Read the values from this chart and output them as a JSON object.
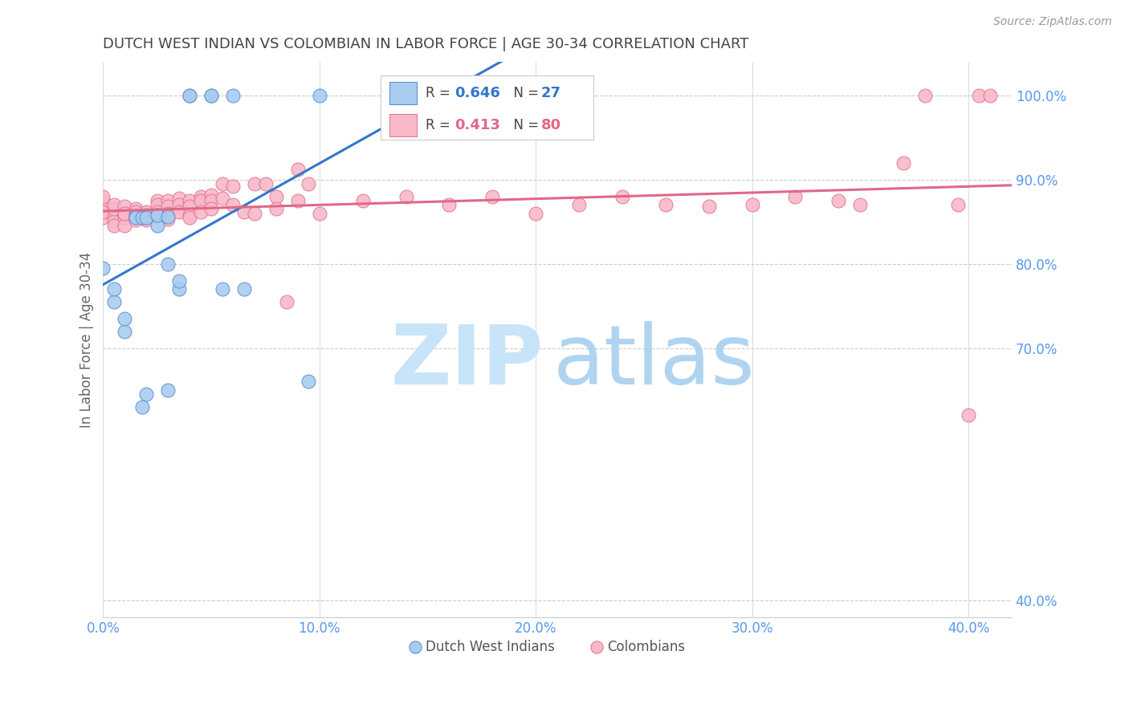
{
  "title": "DUTCH WEST INDIAN VS COLOMBIAN IN LABOR FORCE | AGE 30-34 CORRELATION CHART",
  "source": "Source: ZipAtlas.com",
  "ylabel": "In Labor Force | Age 30-34",
  "x_tick_vals": [
    0.0,
    0.1,
    0.2,
    0.3,
    0.4
  ],
  "x_tick_labels": [
    "0.0%",
    "10.0%",
    "20.0%",
    "30.0%",
    "40.0%"
  ],
  "y_tick_vals": [
    0.4,
    0.7,
    0.8,
    0.9,
    1.0
  ],
  "y_tick_labels": [
    "40.0%",
    "70.0%",
    "80.0%",
    "90.0%",
    "100.0%"
  ],
  "xlim": [
    0.0,
    0.42
  ],
  "ylim": [
    0.38,
    1.04
  ],
  "r_blue": 0.646,
  "n_blue": 27,
  "r_pink": 0.413,
  "n_pink": 80,
  "blue_fill": "#a8ccf0",
  "blue_edge": "#5588cc",
  "pink_fill": "#f8b8c8",
  "pink_edge": "#e07090",
  "blue_line": "#3377cc",
  "pink_line": "#e06888",
  "title_color": "#444444",
  "source_color": "#999999",
  "tick_color": "#5599ee",
  "ylabel_color": "#666666",
  "grid_color": "#cccccc",
  "watermark_zip_color": "#c8e4f8",
  "watermark_atlas_color": "#b0d4f0",
  "blue_scatter_x": [
    0.0,
    0.005,
    0.005,
    0.01,
    0.01,
    0.015,
    0.015,
    0.018,
    0.018,
    0.02,
    0.02,
    0.025,
    0.025,
    0.03,
    0.03,
    0.03,
    0.035,
    0.035,
    0.04,
    0.04,
    0.05,
    0.05,
    0.055,
    0.06,
    0.065,
    0.095,
    0.1
  ],
  "blue_scatter_y": [
    0.795,
    0.755,
    0.77,
    0.72,
    0.735,
    0.857,
    0.855,
    0.855,
    0.63,
    0.645,
    0.855,
    0.845,
    0.858,
    0.65,
    0.8,
    0.856,
    0.77,
    0.78,
    1.0,
    1.0,
    1.0,
    1.0,
    0.77,
    1.0,
    0.77,
    0.66,
    1.0
  ],
  "pink_scatter_x": [
    0.0,
    0.0,
    0.0,
    0.0,
    0.0,
    0.005,
    0.005,
    0.005,
    0.005,
    0.005,
    0.01,
    0.01,
    0.01,
    0.01,
    0.01,
    0.015,
    0.015,
    0.015,
    0.015,
    0.015,
    0.02,
    0.02,
    0.02,
    0.02,
    0.025,
    0.025,
    0.025,
    0.025,
    0.03,
    0.03,
    0.03,
    0.03,
    0.03,
    0.035,
    0.035,
    0.035,
    0.04,
    0.04,
    0.04,
    0.04,
    0.045,
    0.045,
    0.045,
    0.05,
    0.05,
    0.05,
    0.055,
    0.055,
    0.06,
    0.06,
    0.065,
    0.07,
    0.07,
    0.075,
    0.08,
    0.08,
    0.085,
    0.09,
    0.09,
    0.095,
    0.1,
    0.12,
    0.14,
    0.16,
    0.18,
    0.2,
    0.22,
    0.24,
    0.26,
    0.28,
    0.3,
    0.32,
    0.34,
    0.35,
    0.37,
    0.38,
    0.395,
    0.4,
    0.405,
    0.41
  ],
  "pink_scatter_y": [
    0.855,
    0.868,
    0.875,
    0.88,
    0.862,
    0.855,
    0.85,
    0.845,
    0.865,
    0.87,
    0.86,
    0.868,
    0.855,
    0.845,
    0.86,
    0.865,
    0.862,
    0.857,
    0.856,
    0.852,
    0.855,
    0.862,
    0.858,
    0.852,
    0.875,
    0.87,
    0.862,
    0.858,
    0.875,
    0.868,
    0.86,
    0.858,
    0.853,
    0.878,
    0.87,
    0.862,
    0.875,
    0.868,
    0.858,
    0.855,
    0.88,
    0.875,
    0.862,
    0.882,
    0.875,
    0.865,
    0.895,
    0.878,
    0.892,
    0.87,
    0.862,
    0.895,
    0.86,
    0.895,
    0.88,
    0.865,
    0.755,
    0.912,
    0.875,
    0.895,
    0.86,
    0.875,
    0.88,
    0.87,
    0.88,
    0.86,
    0.87,
    0.88,
    0.87,
    0.868,
    0.87,
    0.88,
    0.875,
    0.87,
    0.92,
    1.0,
    0.87,
    0.62,
    1.0,
    1.0
  ]
}
